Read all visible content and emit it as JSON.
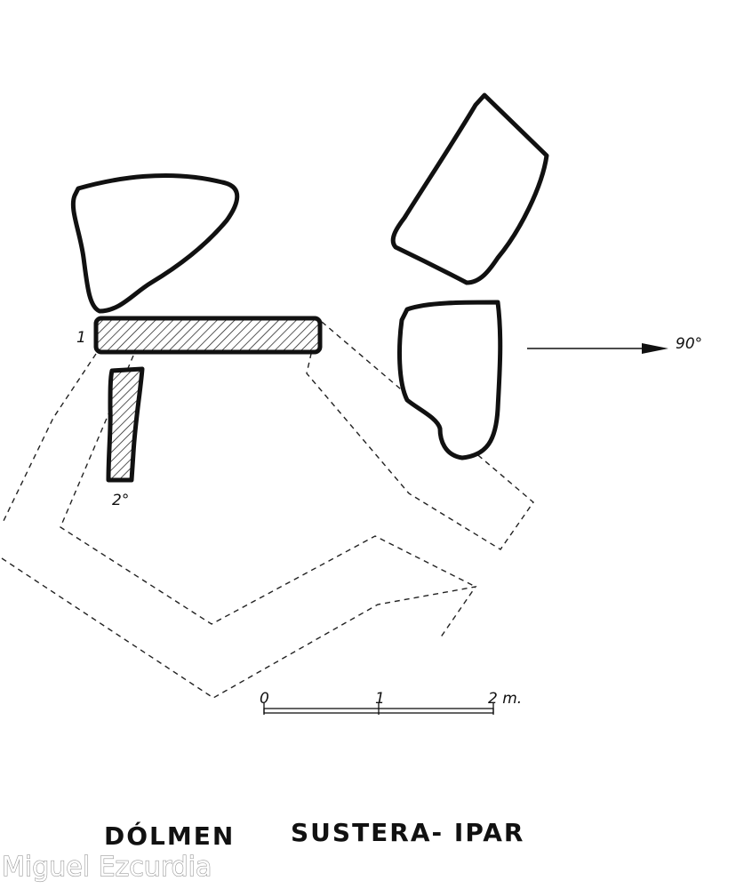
{
  "stone_labels": {
    "stone_1": "1",
    "stone_2": "2°"
  },
  "orientation": {
    "label": "90°"
  },
  "scale_bar": {
    "tick_0": "0",
    "tick_1": "1",
    "tick_2": "2 m."
  },
  "title": {
    "word1": "DÓLMEN",
    "word2": "SUSTERA- IPAR"
  },
  "credit": "Miguel Ezcurdia",
  "colors": {
    "ink": "#111111",
    "paper": "#ffffff"
  }
}
